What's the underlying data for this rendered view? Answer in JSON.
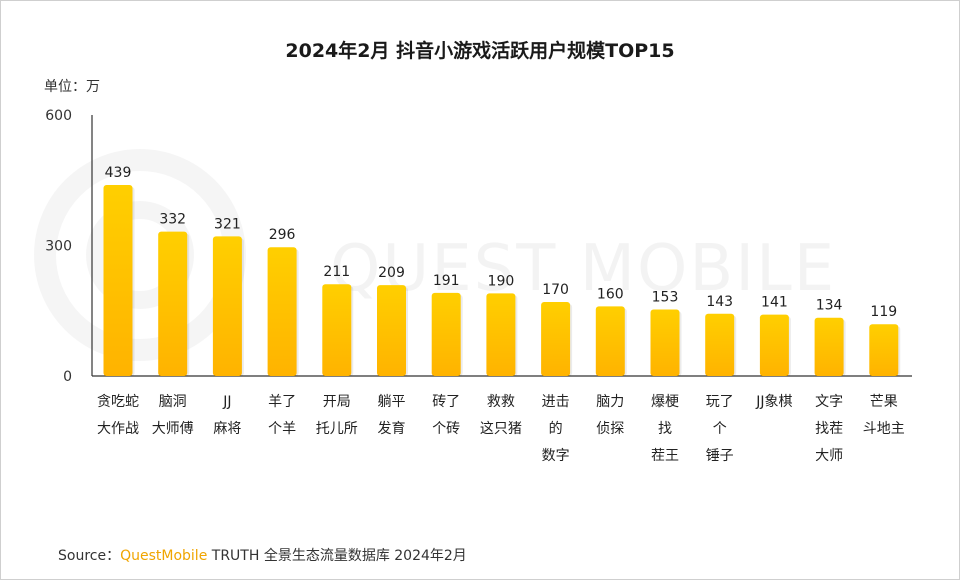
{
  "chart_data": {
    "type": "bar",
    "title": "2024年2月 抖音小游戏活跃用户规模TOP15",
    "unit_label": "单位：万",
    "categories": [
      [
        "贪吃蛇",
        "大作战"
      ],
      [
        "脑洞",
        "大师傅"
      ],
      [
        "JJ",
        "麻将"
      ],
      [
        "羊了",
        "个羊"
      ],
      [
        "开局",
        "托儿所"
      ],
      [
        "躺平",
        "发育"
      ],
      [
        "砖了",
        "个砖"
      ],
      [
        "救救",
        "这只猪"
      ],
      [
        "进击",
        "的",
        "数字"
      ],
      [
        "脑力",
        "侦探"
      ],
      [
        "爆梗",
        "找",
        "茬王"
      ],
      [
        "玩了",
        "个",
        "锤子"
      ],
      [
        "JJ象棋"
      ],
      [
        "文字",
        "找茬",
        "大师"
      ],
      [
        "芒果",
        "斗地主"
      ]
    ],
    "values": [
      439,
      332,
      321,
      296,
      211,
      209,
      191,
      190,
      170,
      160,
      153,
      143,
      141,
      134,
      119
    ],
    "ylim": [
      0,
      600
    ],
    "yticks": [
      "0",
      "300",
      "600"
    ],
    "bar_color_top": "#FFCF00",
    "bar_color_bottom": "#FFB300",
    "grid": false
  },
  "watermark": "QUEST MOBILE",
  "source": {
    "prefix": "Source：",
    "brand": "QuestMobile",
    "text": " TRUTH 全景生态流量数据库 2024年2月"
  },
  "colors": {
    "brand": "#F0A500"
  }
}
